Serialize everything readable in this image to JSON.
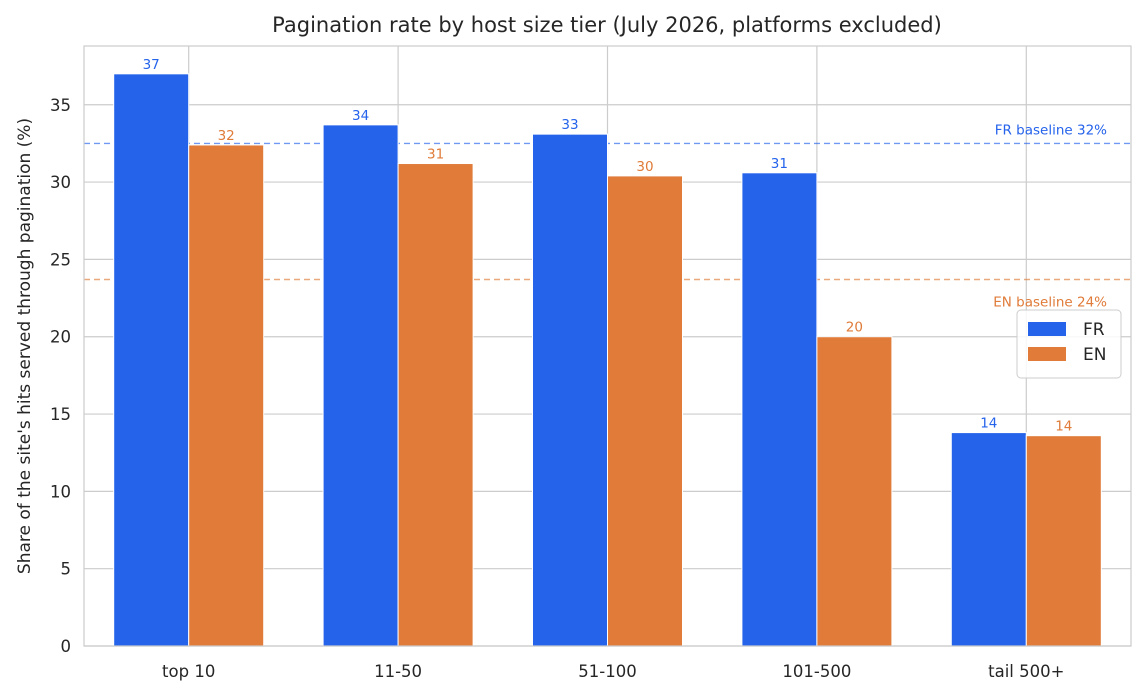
{
  "chart_data": {
    "type": "bar",
    "title": "Pagination rate by host size tier (July 2026, platforms excluded)",
    "xlabel": "",
    "ylabel": "Share of the site's hits served through pagination (%)",
    "categories": [
      "top 10",
      "11-50",
      "51-100",
      "101-500",
      "tail 500+"
    ],
    "series": [
      {
        "name": "FR",
        "color": "#2563eb",
        "values": [
          37.0,
          33.7,
          33.1,
          30.6,
          13.8
        ],
        "labels": [
          "37",
          "34",
          "33",
          "31",
          "14"
        ]
      },
      {
        "name": "EN",
        "color": "#e07b39",
        "values": [
          32.4,
          31.2,
          30.4,
          20.0,
          13.6
        ],
        "labels": [
          "32",
          "31",
          "30",
          "20",
          "14"
        ]
      }
    ],
    "ylim": [
      0,
      38.8
    ],
    "yticks": [
      0,
      5,
      10,
      15,
      20,
      25,
      30,
      35
    ],
    "grid": true,
    "legend_position": "right",
    "baselines": [
      {
        "series": "FR",
        "value": 32.5,
        "label": "FR baseline 32%",
        "color": "#2563eb"
      },
      {
        "series": "EN",
        "value": 23.7,
        "label": "EN baseline 24%",
        "color": "#e07b39"
      }
    ]
  }
}
